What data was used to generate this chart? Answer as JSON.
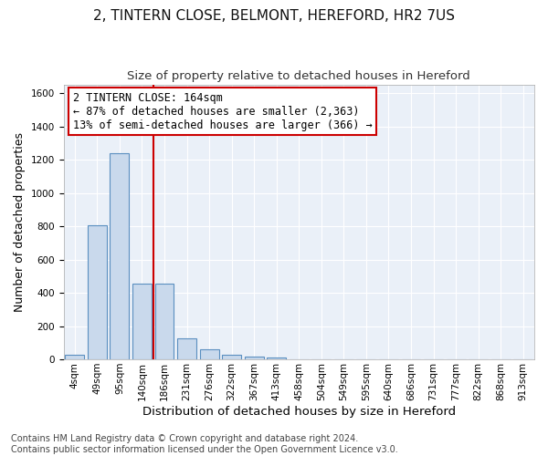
{
  "title": "2, TINTERN CLOSE, BELMONT, HEREFORD, HR2 7US",
  "subtitle": "Size of property relative to detached houses in Hereford",
  "xlabel": "Distribution of detached houses by size in Hereford",
  "ylabel": "Number of detached properties",
  "bar_labels": [
    "4sqm",
    "49sqm",
    "95sqm",
    "140sqm",
    "186sqm",
    "231sqm",
    "276sqm",
    "322sqm",
    "367sqm",
    "413sqm",
    "458sqm",
    "504sqm",
    "549sqm",
    "595sqm",
    "640sqm",
    "686sqm",
    "731sqm",
    "777sqm",
    "822sqm",
    "868sqm",
    "913sqm"
  ],
  "bar_values": [
    25,
    805,
    1240,
    455,
    455,
    125,
    60,
    28,
    18,
    10,
    0,
    0,
    0,
    0,
    0,
    0,
    0,
    0,
    0,
    0,
    0
  ],
  "bar_color": "#c9d9ec",
  "bar_edge_color": "#5a8fc0",
  "vline_x": 3.5,
  "vline_color": "#cc0000",
  "annotation_text": "2 TINTERN CLOSE: 164sqm\n← 87% of detached houses are smaller (2,363)\n13% of semi-detached houses are larger (366) →",
  "annotation_box_color": "#cc0000",
  "ylim": [
    0,
    1650
  ],
  "yticks": [
    0,
    200,
    400,
    600,
    800,
    1000,
    1200,
    1400,
    1600
  ],
  "plot_bg_color": "#eaf0f8",
  "grid_color": "#ffffff",
  "footer_text": "Contains HM Land Registry data © Crown copyright and database right 2024.\nContains public sector information licensed under the Open Government Licence v3.0.",
  "title_fontsize": 11,
  "subtitle_fontsize": 9.5,
  "xlabel_fontsize": 9.5,
  "ylabel_fontsize": 9,
  "tick_fontsize": 7.5,
  "annotation_fontsize": 8.5,
  "footer_fontsize": 7
}
